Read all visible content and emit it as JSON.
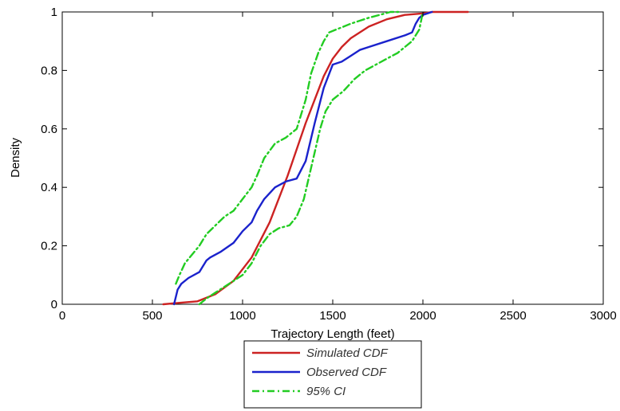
{
  "chart_data": {
    "type": "line",
    "xlabel": "Trajectory Length (feet)",
    "ylabel": "Density",
    "xlim": [
      0,
      3000
    ],
    "ylim": [
      0,
      1
    ],
    "xticks": [
      "0",
      "500",
      "1000",
      "1500",
      "2000",
      "2500",
      "3000"
    ],
    "yticks": [
      "0",
      "0.2",
      "0.4",
      "0.6",
      "0.8",
      "1"
    ],
    "grid": false,
    "legend_position": "bottom-center",
    "series": [
      {
        "name": "Simulated CDF",
        "color": "#cc2222",
        "style": "solid",
        "x": [
          560,
          650,
          750,
          850,
          950,
          1050,
          1150,
          1250,
          1350,
          1400,
          1450,
          1500,
          1550,
          1600,
          1700,
          1800,
          1900,
          2000,
          2050,
          2150,
          2250
        ],
        "y": [
          0.0,
          0.005,
          0.01,
          0.035,
          0.08,
          0.16,
          0.28,
          0.44,
          0.62,
          0.7,
          0.78,
          0.84,
          0.88,
          0.91,
          0.95,
          0.975,
          0.99,
          0.995,
          1.0,
          1.0,
          1.0
        ]
      },
      {
        "name": "Observed CDF",
        "color": "#1a22cc",
        "style": "solid",
        "x": [
          620,
          640,
          660,
          700,
          760,
          800,
          820,
          880,
          950,
          1000,
          1050,
          1080,
          1120,
          1180,
          1240,
          1300,
          1350,
          1400,
          1450,
          1500,
          1550,
          1600,
          1650,
          1700,
          1800,
          1900,
          1940,
          1960,
          1980,
          2000,
          2050
        ],
        "y": [
          0.0,
          0.05,
          0.07,
          0.09,
          0.11,
          0.15,
          0.16,
          0.18,
          0.21,
          0.25,
          0.28,
          0.32,
          0.36,
          0.4,
          0.42,
          0.43,
          0.49,
          0.62,
          0.74,
          0.82,
          0.83,
          0.85,
          0.87,
          0.88,
          0.9,
          0.92,
          0.93,
          0.96,
          0.98,
          0.99,
          1.0
        ]
      },
      {
        "name": "95% CI",
        "color": "#22cc22",
        "style": "dash-dot",
        "x": [
          630,
          650,
          680,
          720,
          760,
          800,
          850,
          900,
          950,
          1000,
          1050,
          1080,
          1120,
          1180,
          1240,
          1300,
          1330,
          1350,
          1380,
          1420,
          1450,
          1480,
          1520,
          1560,
          1600,
          1650,
          1700,
          1760,
          1820,
          1880
        ],
        "y": [
          0.07,
          0.1,
          0.14,
          0.17,
          0.2,
          0.24,
          0.27,
          0.3,
          0.32,
          0.36,
          0.4,
          0.44,
          0.5,
          0.55,
          0.57,
          0.6,
          0.66,
          0.7,
          0.79,
          0.86,
          0.9,
          0.93,
          0.94,
          0.95,
          0.96,
          0.97,
          0.98,
          0.99,
          1.0,
          1.0
        ]
      },
      {
        "name": "",
        "color": "#22cc22",
        "style": "dash-dot",
        "x": [
          760,
          800,
          850,
          900,
          950,
          1000,
          1050,
          1100,
          1150,
          1200,
          1260,
          1300,
          1340,
          1370,
          1400,
          1430,
          1460,
          1500,
          1560,
          1620,
          1680,
          1740,
          1800,
          1860,
          1900,
          1940,
          1980,
          2000
        ],
        "y": [
          0.0,
          0.02,
          0.04,
          0.06,
          0.08,
          0.1,
          0.14,
          0.2,
          0.24,
          0.26,
          0.27,
          0.3,
          0.36,
          0.44,
          0.52,
          0.6,
          0.66,
          0.7,
          0.73,
          0.77,
          0.8,
          0.82,
          0.84,
          0.86,
          0.88,
          0.9,
          0.94,
          1.0
        ]
      }
    ],
    "legend": [
      {
        "label": "Simulated CDF",
        "color": "#cc2222",
        "style": "solid"
      },
      {
        "label": "Observed CDF",
        "color": "#1a22cc",
        "style": "solid"
      },
      {
        "label": "95% CI",
        "color": "#22cc22",
        "style": "dash-dot"
      }
    ]
  }
}
